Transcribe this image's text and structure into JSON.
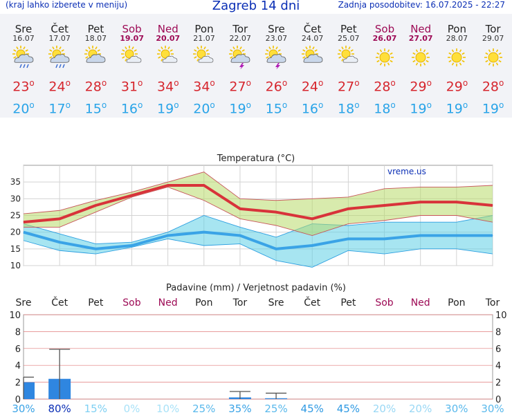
{
  "header": {
    "menu_hint": "(kraj lahko izberete v meniju)",
    "title": "Zagreb 14 dni",
    "updated": "Zadnja posodobitev: 16.07.2025 - 22:27"
  },
  "days": [
    {
      "name": "Sre",
      "date": "16.07",
      "weekend": false,
      "icon": "sun-cloud-rain-icon",
      "tmax": "23",
      "tmin": "20"
    },
    {
      "name": "Čet",
      "date": "17.07",
      "weekend": false,
      "icon": "sun-cloud-rain-icon",
      "tmax": "24",
      "tmin": "17"
    },
    {
      "name": "Pet",
      "date": "18.07",
      "weekend": false,
      "icon": "sun-cloud-icon",
      "tmax": "28",
      "tmin": "15"
    },
    {
      "name": "Sob",
      "date": "19.07",
      "weekend": true,
      "icon": "sun-small-cloud-icon",
      "tmax": "31",
      "tmin": "16"
    },
    {
      "name": "Ned",
      "date": "20.07",
      "weekend": true,
      "icon": "sun-small-cloud-icon",
      "tmax": "34",
      "tmin": "19"
    },
    {
      "name": "Pon",
      "date": "21.07",
      "weekend": false,
      "icon": "sun-small-cloud-icon",
      "tmax": "34",
      "tmin": "20"
    },
    {
      "name": "Tor",
      "date": "22.07",
      "weekend": false,
      "icon": "sun-cloud-storm-icon",
      "tmax": "27",
      "tmin": "19"
    },
    {
      "name": "Sre",
      "date": "23.07",
      "weekend": false,
      "icon": "sun-cloud-storm-icon",
      "tmax": "26",
      "tmin": "15"
    },
    {
      "name": "Čet",
      "date": "24.07",
      "weekend": false,
      "icon": "sun-cloud-icon",
      "tmax": "24",
      "tmin": "16"
    },
    {
      "name": "Pet",
      "date": "25.07",
      "weekend": false,
      "icon": "sun-small-cloud-icon",
      "tmax": "27",
      "tmin": "18"
    },
    {
      "name": "Sob",
      "date": "26.07",
      "weekend": true,
      "icon": "sun-icon",
      "tmax": "28",
      "tmin": "18"
    },
    {
      "name": "Ned",
      "date": "27.07",
      "weekend": true,
      "icon": "sun-icon",
      "tmax": "29",
      "tmin": "19"
    },
    {
      "name": "Pon",
      "date": "28.07",
      "weekend": false,
      "icon": "sun-icon",
      "tmax": "29",
      "tmin": "19"
    },
    {
      "name": "Tor",
      "date": "29.07",
      "weekend": false,
      "icon": "sun-icon",
      "tmax": "28",
      "tmin": "19"
    }
  ],
  "colors": {
    "tmax": "#d6262e",
    "tmin": "#2aa4e8",
    "weekend": "#9d0a55",
    "precip": "#2f86e0",
    "title": "#0b2fb5"
  },
  "chart_data": [
    {
      "type": "line",
      "title": "Temperatura (°C)",
      "watermark": "vreme.us",
      "ylim": [
        10,
        40
      ],
      "yticks": [
        10,
        15,
        20,
        25,
        30,
        35
      ],
      "grid": true,
      "x": [
        "16.07",
        "17.07",
        "18.07",
        "19.07",
        "20.07",
        "21.07",
        "22.07",
        "23.07",
        "24.07",
        "25.07",
        "26.07",
        "27.07",
        "28.07",
        "29.07"
      ],
      "series": [
        {
          "role": "max",
          "values": [
            23,
            24,
            28,
            31,
            34,
            34,
            27,
            26,
            24,
            27,
            28,
            29,
            29,
            28
          ]
        },
        {
          "role": "min",
          "values": [
            20,
            17,
            15,
            16,
            19,
            20,
            19,
            15,
            16,
            18,
            18,
            19,
            19,
            19
          ]
        },
        {
          "role": "max-range-high",
          "values": [
            25.5,
            26.5,
            29.5,
            32,
            35,
            38,
            30,
            29.5,
            30,
            30.5,
            33,
            33.5,
            33.5,
            34
          ]
        },
        {
          "role": "max-range-low",
          "values": [
            21.5,
            21.5,
            26,
            30.5,
            33.5,
            29.5,
            24,
            22,
            19,
            22.5,
            23.5,
            25,
            25,
            23
          ]
        },
        {
          "role": "min-range-high",
          "values": [
            22.5,
            19.5,
            16.5,
            17,
            20,
            25,
            21.5,
            18.5,
            22.5,
            22,
            23,
            23,
            23,
            25
          ]
        },
        {
          "role": "min-range-low",
          "values": [
            17.5,
            14.5,
            13.5,
            15.5,
            18,
            16,
            16.5,
            11.5,
            9.5,
            14.5,
            13.5,
            15,
            15,
            13.5
          ]
        }
      ]
    },
    {
      "type": "bar",
      "title": "Padavine (mm) / Verjetnost padavin (%)",
      "ylim": [
        0,
        10
      ],
      "yticks": [
        0,
        2,
        4,
        6,
        8,
        10
      ],
      "categories": [
        "Sre",
        "Čet",
        "Pet",
        "Sob",
        "Ned",
        "Pon",
        "Tor",
        "Sre",
        "Čet",
        "Pet",
        "Sob",
        "Ned",
        "Pon",
        "Tor"
      ],
      "values": [
        2.0,
        2.4,
        0,
        0,
        0,
        0,
        0.2,
        0.1,
        0,
        0,
        0,
        0,
        0,
        0
      ],
      "error_high": [
        2.6,
        5.9,
        0,
        0,
        0,
        0,
        0.9,
        0.7,
        0,
        0,
        0,
        0,
        0,
        0
      ],
      "probability": [
        "30%",
        "80%",
        "15%",
        "0%",
        "10%",
        "25%",
        "35%",
        "25%",
        "45%",
        "45%",
        "20%",
        "20%",
        "30%",
        "30%"
      ],
      "probability_colors": [
        "#3aa3e6",
        "#0b2fb5",
        "#7fd0f3",
        "#a9e2f8",
        "#a9e2f8",
        "#5ab9ec",
        "#3aa3e6",
        "#5ab9ec",
        "#2f9ae3",
        "#2f9ae3",
        "#9ad8f5",
        "#9ad8f5",
        "#5ab9ec",
        "#5ab9ec"
      ]
    }
  ]
}
